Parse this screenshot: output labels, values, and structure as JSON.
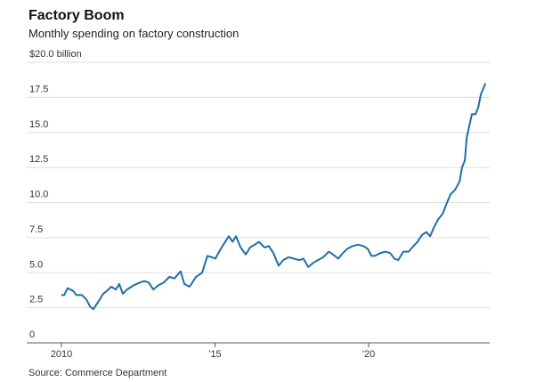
{
  "chart_data": {
    "type": "line",
    "title": "Factory Boom",
    "subtitle": "Monthly spending on factory construction",
    "source": "Source: Commerce Department",
    "xlim": [
      2008.87,
      2023.94
    ],
    "xticks": [
      {
        "value": 2010,
        "label": "2010"
      },
      {
        "value": 2015,
        "label": "'15"
      },
      {
        "value": 2020,
        "label": "'20"
      }
    ],
    "ylim": [
      0,
      20
    ],
    "yticks": [
      0,
      2.5,
      {
        "value": 5,
        "label": "5.0"
      },
      7.5,
      {
        "value": 10,
        "label": "10.0"
      },
      12.5,
      {
        "value": 15,
        "label": "15.0"
      },
      17.5,
      {
        "value": 20,
        "label": "$20.0 billion"
      }
    ],
    "grid": true,
    "series": [
      {
        "color": "#1f6fa3",
        "x": [
          2010.0,
          2010.09,
          2010.2,
          2010.38,
          2010.49,
          2010.67,
          2010.81,
          2010.93,
          2011.04,
          2011.19,
          2011.36,
          2011.48,
          2011.62,
          2011.77,
          2011.88,
          2012.0,
          2012.14,
          2012.35,
          2012.55,
          2012.7,
          2012.84,
          2012.99,
          2013.16,
          2013.33,
          2013.51,
          2013.68,
          2013.88,
          2014.0,
          2014.17,
          2014.38,
          2014.58,
          2014.75,
          2014.9,
          2015.01,
          2015.16,
          2015.3,
          2015.45,
          2015.57,
          2015.68,
          2015.83,
          2016.0,
          2016.14,
          2016.29,
          2016.43,
          2016.61,
          2016.75,
          2016.9,
          2017.07,
          2017.22,
          2017.39,
          2017.57,
          2017.74,
          2017.88,
          2018.03,
          2018.2,
          2018.35,
          2018.52,
          2018.7,
          2018.84,
          2019.01,
          2019.16,
          2019.3,
          2019.48,
          2019.65,
          2019.83,
          2019.97,
          2020.09,
          2020.2,
          2020.38,
          2020.55,
          2020.7,
          2020.84,
          2020.96,
          2021.13,
          2021.3,
          2021.42,
          2021.59,
          2021.74,
          2021.88,
          2022.0,
          2022.12,
          2022.26,
          2022.41,
          2022.55,
          2022.67,
          2022.81,
          2022.96,
          2023.04,
          2023.13,
          2023.19,
          2023.28,
          2023.36,
          2023.48,
          2023.57,
          2023.65,
          2023.8
        ],
        "values": [
          3.4,
          3.4,
          3.9,
          3.7,
          3.4,
          3.4,
          3.1,
          2.6,
          2.4,
          2.9,
          3.5,
          3.7,
          4.0,
          3.8,
          4.2,
          3.5,
          3.8,
          4.1,
          4.3,
          4.4,
          4.3,
          3.8,
          4.1,
          4.3,
          4.7,
          4.6,
          5.1,
          4.2,
          4.0,
          4.7,
          5.0,
          6.2,
          6.1,
          6.0,
          6.6,
          7.1,
          7.6,
          7.2,
          7.6,
          6.8,
          6.3,
          6.8,
          7.0,
          7.2,
          6.8,
          6.9,
          6.4,
          5.5,
          5.9,
          6.1,
          6.0,
          5.9,
          6.0,
          5.4,
          5.7,
          5.9,
          6.1,
          6.5,
          6.3,
          6.0,
          6.4,
          6.7,
          6.9,
          7.0,
          6.9,
          6.7,
          6.2,
          6.2,
          6.4,
          6.5,
          6.4,
          6.0,
          5.9,
          6.5,
          6.5,
          6.8,
          7.2,
          7.7,
          7.9,
          7.6,
          8.2,
          8.8,
          9.2,
          10.0,
          10.6,
          10.9,
          11.5,
          12.5,
          13.0,
          14.6,
          15.5,
          16.3,
          16.3,
          16.8,
          17.7,
          18.5
        ]
      }
    ]
  }
}
